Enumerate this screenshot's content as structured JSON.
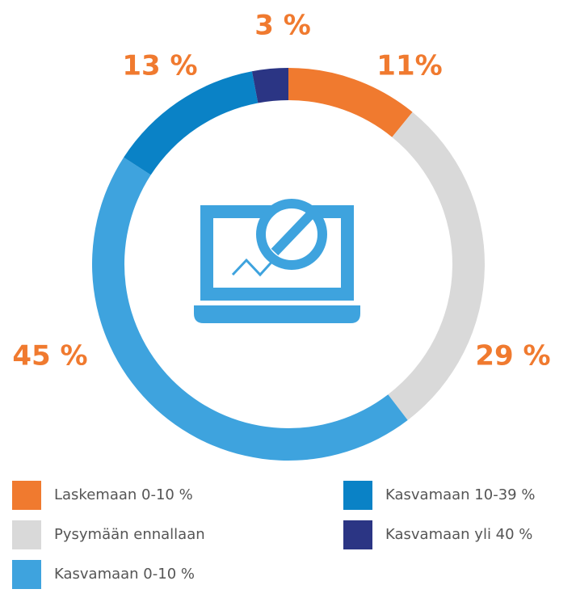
{
  "chart_data": {
    "type": "donut",
    "categories": [
      "Laskemaan 0-10 %",
      "Pysymään ennallaan",
      "Kasvamaan 0-10 %",
      "Kasvamaan 10-39 %",
      "Kasvamaan yli 40 %"
    ],
    "values": [
      11,
      29,
      45,
      13,
      3
    ],
    "value_labels": [
      "11%",
      "29 %",
      "45 %",
      "13 %",
      "3 %"
    ],
    "colors": [
      "#f07a2f",
      "#d9d9d9",
      "#3ea3de",
      "#0a82c6",
      "#2b3584"
    ]
  }
}
